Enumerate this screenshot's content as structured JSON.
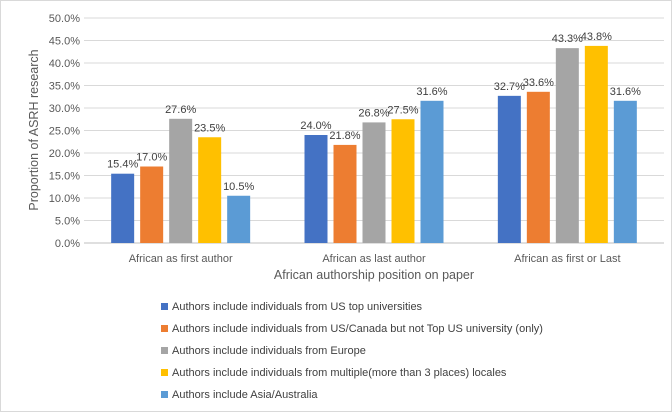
{
  "chart_data": {
    "type": "bar",
    "title": "",
    "xlabel": "African authorship position on paper",
    "ylabel": "Proportion of ASRH research",
    "ylim": [
      0,
      50
    ],
    "ytick_step": 5,
    "ytick_labels": [
      "0.0%",
      "5.0%",
      "10.0%",
      "15.0%",
      "20.0%",
      "25.0%",
      "30.0%",
      "35.0%",
      "40.0%",
      "45.0%",
      "50.0%"
    ],
    "categories": [
      "African as first author",
      "African as last author",
      "African as first or Last"
    ],
    "grid": true,
    "legend_position": "bottom",
    "series": [
      {
        "name": "Authors include individuals from US top universities",
        "color": "#4472c4",
        "values": [
          15.4,
          24.0,
          32.7
        ],
        "labels": [
          "15.4%",
          "24.0%",
          "32.7%"
        ]
      },
      {
        "name": "Authors include individuals from US/Canada but not Top US university (only)",
        "color": "#ed7d31",
        "values": [
          17.0,
          21.8,
          33.6
        ],
        "labels": [
          "17.0%",
          "21.8%",
          "33.6%"
        ]
      },
      {
        "name": "Authors include individuals from Europe",
        "color": "#a5a5a5",
        "values": [
          27.6,
          26.8,
          43.3
        ],
        "labels": [
          "27.6%",
          "26.8%",
          "43.3%"
        ]
      },
      {
        "name": "Authors include individuals from multiple(more than 3 places) locales",
        "color": "#ffc000",
        "values": [
          23.5,
          27.5,
          43.8
        ],
        "labels": [
          "23.5%",
          "27.5%",
          "43.8%"
        ]
      },
      {
        "name": "Authors include Asia/Australia",
        "color": "#5b9bd5",
        "values": [
          10.5,
          31.6,
          31.6
        ],
        "labels": [
          "10.5%",
          "31.6%",
          "31.6%"
        ]
      }
    ]
  }
}
